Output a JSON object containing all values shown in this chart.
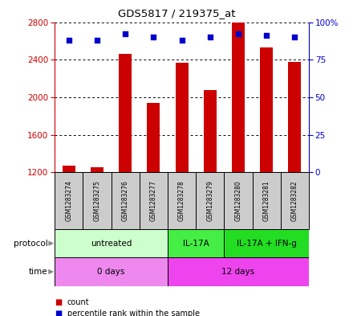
{
  "title": "GDS5817 / 219375_at",
  "samples": [
    "GSM1283274",
    "GSM1283275",
    "GSM1283276",
    "GSM1283277",
    "GSM1283278",
    "GSM1283279",
    "GSM1283280",
    "GSM1283281",
    "GSM1283282"
  ],
  "counts": [
    1270,
    1250,
    2460,
    1940,
    2370,
    2080,
    2800,
    2530,
    2380
  ],
  "percentile_ranks": [
    88,
    88,
    92,
    90,
    88,
    90,
    92,
    91,
    90
  ],
  "ylim_left": [
    1200,
    2800
  ],
  "ylim_right": [
    0,
    100
  ],
  "yticks_left": [
    1200,
    1600,
    2000,
    2400,
    2800
  ],
  "yticks_right": [
    0,
    25,
    50,
    75,
    100
  ],
  "protocol_groups": [
    {
      "label": "untreated",
      "start": 0,
      "end": 4,
      "color": "#ccffcc"
    },
    {
      "label": "IL-17A",
      "start": 4,
      "end": 6,
      "color": "#44ee44"
    },
    {
      "label": "IL-17A + IFN-g",
      "start": 6,
      "end": 9,
      "color": "#22dd22"
    }
  ],
  "time_groups": [
    {
      "label": "0 days",
      "start": 0,
      "end": 4,
      "color": "#ee88ee"
    },
    {
      "label": "12 days",
      "start": 4,
      "end": 9,
      "color": "#ee44ee"
    }
  ],
  "bar_color": "#cc0000",
  "dot_color": "#0000cc",
  "bar_width": 0.45,
  "left_axis_color": "#cc0000",
  "right_axis_color": "#0000cc",
  "sample_bg_color": "#cccccc",
  "grid_color": "#000000",
  "legend_count_color": "#cc0000",
  "legend_pct_color": "#0000cc"
}
